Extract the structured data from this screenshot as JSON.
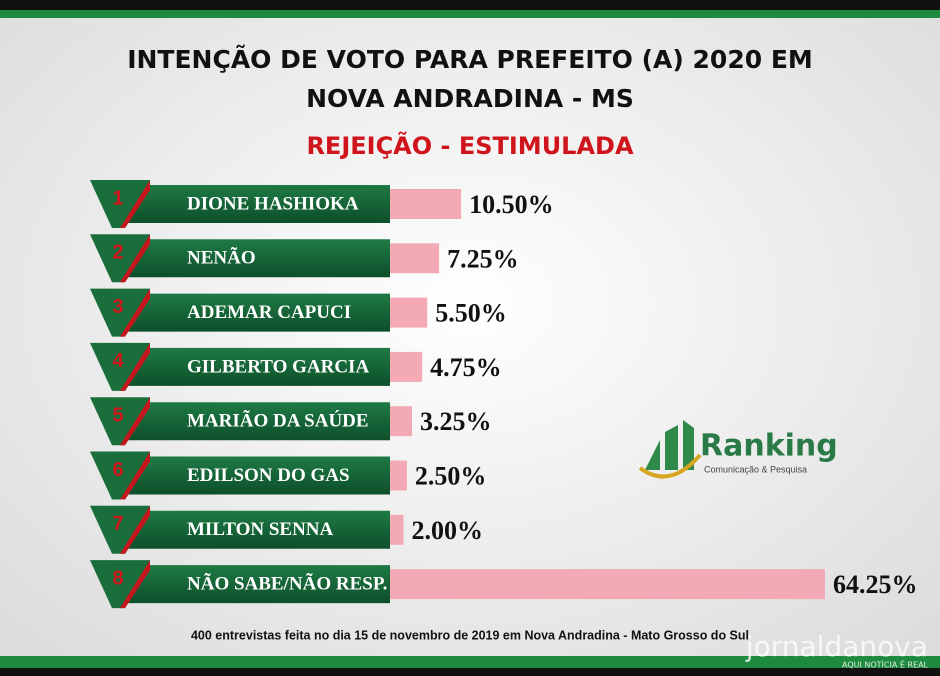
{
  "chart_data": {
    "type": "bar",
    "title": "INTENÇÃO DE VOTO PARA PREFEITO (A) 2020 EM",
    "title_line2": "NOVA ANDRADINA - MS",
    "subtitle": "REJEIÇÃO - ESTIMULADA",
    "ranks": [
      "1",
      "2",
      "3",
      "4",
      "5",
      "6",
      "7",
      "8"
    ],
    "categories": [
      "DIONE HASHIOKA",
      "NENÃO",
      "ADEMAR CAPUCI",
      "GILBERTO GARCIA",
      "MARIÃO DA SAÚDE",
      "EDILSON DO GAS",
      "MILTON SENNA",
      "NÃO SABE/NÃO RESP."
    ],
    "values": [
      10.5,
      7.25,
      5.5,
      4.75,
      3.25,
      2.5,
      2.0,
      64.25
    ],
    "value_labels": [
      "10.50%",
      "7.25%",
      "5.50%",
      "4.75%",
      "3.25%",
      "2.50%",
      "2.00%",
      "64.25%"
    ],
    "color": "#f4aab4",
    "logo": {
      "name": "Ranking",
      "tagline": "Comunicação & Pesquisa"
    },
    "footnote": "400 entrevistas feita no dia 15 de novembro de 2019 em Nova Andradina - Mato Grosso do Sul",
    "watermark": {
      "name": "jornaldanova",
      "tagline": "AQUI NOTÍCIA É REAL"
    }
  }
}
